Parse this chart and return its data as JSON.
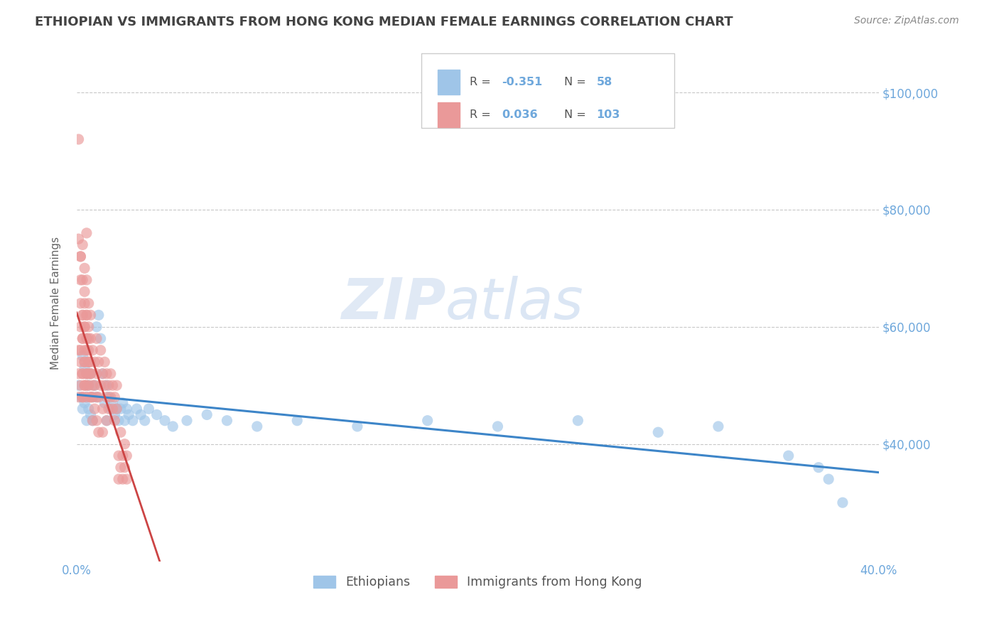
{
  "title": "ETHIOPIAN VS IMMIGRANTS FROM HONG KONG MEDIAN FEMALE EARNINGS CORRELATION CHART",
  "source": "Source: ZipAtlas.com",
  "ylabel": "Median Female Earnings",
  "watermark": "ZIPatlas",
  "xlim": [
    0.0,
    0.4
  ],
  "ylim": [
    20000,
    108000
  ],
  "yticks": [
    40000,
    60000,
    80000,
    100000
  ],
  "ytick_labels": [
    "$40,000",
    "$60,000",
    "$80,000",
    "$100,000"
  ],
  "blue_color": "#9fc5e8",
  "pink_color": "#ea9999",
  "blue_line_color": "#3d85c8",
  "pink_line_color": "#cc4444",
  "pink_dash_color": "#cc8888",
  "axis_color": "#6fa8dc",
  "title_color": "#434343",
  "grid_color": "#c8c8c8",
  "series1_label": "Ethiopians",
  "series2_label": "Immigrants from Hong Kong",
  "ethiopians_x": [
    0.001,
    0.002,
    0.003,
    0.003,
    0.004,
    0.004,
    0.005,
    0.005,
    0.005,
    0.006,
    0.006,
    0.007,
    0.007,
    0.008,
    0.008,
    0.009,
    0.01,
    0.01,
    0.011,
    0.012,
    0.013,
    0.014,
    0.015,
    0.015,
    0.016,
    0.017,
    0.018,
    0.019,
    0.02,
    0.021,
    0.022,
    0.023,
    0.024,
    0.025,
    0.026,
    0.028,
    0.03,
    0.032,
    0.034,
    0.036,
    0.04,
    0.044,
    0.048,
    0.055,
    0.065,
    0.075,
    0.09,
    0.11,
    0.14,
    0.175,
    0.21,
    0.25,
    0.29,
    0.32,
    0.355,
    0.37,
    0.375,
    0.382
  ],
  "ethiopians_y": [
    50000,
    48000,
    55000,
    46000,
    53000,
    47000,
    52000,
    48000,
    44000,
    50000,
    46000,
    52000,
    45000,
    48000,
    44000,
    50000,
    60000,
    48000,
    62000,
    58000,
    52000,
    47000,
    50000,
    44000,
    48000,
    46000,
    47000,
    45000,
    46000,
    44000,
    46000,
    47000,
    44000,
    46000,
    45000,
    44000,
    46000,
    45000,
    44000,
    46000,
    45000,
    44000,
    43000,
    44000,
    45000,
    44000,
    43000,
    44000,
    43000,
    44000,
    43000,
    44000,
    42000,
    43000,
    38000,
    36000,
    34000,
    30000
  ],
  "hongkong_x": [
    0.001,
    0.001,
    0.001,
    0.002,
    0.002,
    0.002,
    0.002,
    0.003,
    0.003,
    0.003,
    0.003,
    0.004,
    0.004,
    0.004,
    0.004,
    0.004,
    0.005,
    0.005,
    0.005,
    0.005,
    0.005,
    0.005,
    0.005,
    0.006,
    0.006,
    0.006,
    0.006,
    0.007,
    0.007,
    0.007,
    0.007,
    0.007,
    0.008,
    0.008,
    0.008,
    0.008,
    0.009,
    0.009,
    0.009,
    0.01,
    0.01,
    0.01,
    0.01,
    0.011,
    0.011,
    0.011,
    0.012,
    0.012,
    0.013,
    0.013,
    0.013,
    0.014,
    0.014,
    0.015,
    0.015,
    0.015,
    0.016,
    0.016,
    0.017,
    0.017,
    0.018,
    0.018,
    0.019,
    0.019,
    0.02,
    0.02,
    0.021,
    0.021,
    0.022,
    0.022,
    0.023,
    0.023,
    0.024,
    0.024,
    0.025,
    0.025,
    0.003,
    0.003,
    0.004,
    0.004,
    0.005,
    0.005,
    0.006,
    0.006,
    0.007,
    0.007,
    0.002,
    0.002,
    0.003,
    0.003,
    0.004,
    0.004,
    0.005,
    0.005,
    0.006,
    0.006,
    0.001,
    0.001,
    0.002,
    0.002,
    0.003,
    0.003,
    0.004
  ],
  "hongkong_y": [
    56000,
    92000,
    75000,
    68000,
    72000,
    64000,
    72000,
    58000,
    68000,
    62000,
    74000,
    54000,
    64000,
    70000,
    66000,
    60000,
    50000,
    56000,
    62000,
    52000,
    68000,
    58000,
    76000,
    52000,
    58000,
    64000,
    54000,
    52000,
    58000,
    54000,
    48000,
    62000,
    56000,
    50000,
    48000,
    44000,
    54000,
    50000,
    46000,
    52000,
    58000,
    48000,
    44000,
    54000,
    48000,
    42000,
    50000,
    56000,
    52000,
    46000,
    42000,
    50000,
    54000,
    48000,
    52000,
    44000,
    46000,
    50000,
    52000,
    48000,
    46000,
    50000,
    48000,
    44000,
    46000,
    50000,
    34000,
    38000,
    36000,
    42000,
    34000,
    38000,
    36000,
    40000,
    34000,
    38000,
    48000,
    52000,
    50000,
    54000,
    48000,
    52000,
    50000,
    54000,
    48000,
    52000,
    56000,
    60000,
    58000,
    62000,
    56000,
    60000,
    58000,
    62000,
    56000,
    60000,
    48000,
    52000,
    50000,
    54000,
    48000,
    52000,
    50000
  ]
}
